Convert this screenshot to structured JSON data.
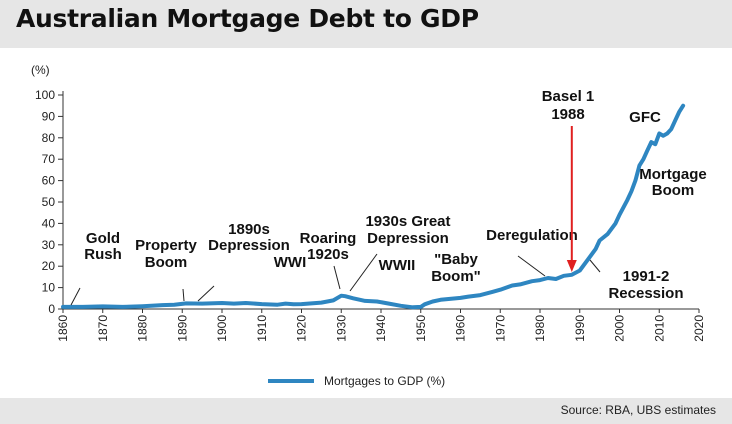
{
  "title": "Australian Mortgage Debt to GDP",
  "source": "Source:  RBA, UBS estimates",
  "chart_data": {
    "type": "line",
    "title": "Australian Mortgage Debt to GDP",
    "ylabel": "(%)",
    "xlabel": "",
    "xlim": [
      1860,
      2020
    ],
    "ylim": [
      0,
      100
    ],
    "xticks": [
      1860,
      1870,
      1880,
      1890,
      1900,
      1910,
      1920,
      1930,
      1940,
      1950,
      1960,
      1970,
      1980,
      1990,
      2000,
      2010,
      2020
    ],
    "yticks": [
      0,
      10,
      20,
      30,
      40,
      50,
      60,
      70,
      80,
      90,
      100
    ],
    "grid": false,
    "legend_position": "bottom",
    "series": [
      {
        "name": "Mortgages to GDP (%)",
        "color": "#2e86c1",
        "x": [
          1860,
          1865,
          1870,
          1875,
          1880,
          1885,
          1888,
          1891,
          1895,
          1900,
          1903,
          1906,
          1910,
          1914,
          1916,
          1918,
          1920,
          1925,
          1928,
          1930,
          1931,
          1933,
          1936,
          1939,
          1942,
          1945,
          1948,
          1950,
          1951,
          1953,
          1955,
          1960,
          1962,
          1965,
          1968,
          1970,
          1973,
          1975,
          1978,
          1980,
          1982,
          1984,
          1986,
          1988,
          1990,
          1992,
          1994,
          1995,
          1997,
          1999,
          2000,
          2002,
          2003,
          2004,
          2005,
          2006,
          2007,
          2008,
          2009,
          2010,
          2011,
          2012,
          2013,
          2014,
          2015,
          2016
        ],
        "values": [
          1,
          1,
          1.2,
          1,
          1.3,
          1.8,
          2,
          2.6,
          2.5,
          2.8,
          2.5,
          2.8,
          2.3,
          2,
          2.5,
          2.2,
          2.3,
          3,
          4,
          6.2,
          6,
          5,
          3.8,
          3.5,
          2.5,
          1.5,
          0.8,
          1,
          2.2,
          3.5,
          4.3,
          5.2,
          5.8,
          6.5,
          8,
          9,
          11,
          11.5,
          13,
          13.5,
          14.5,
          14,
          15.5,
          16,
          18,
          23,
          28,
          32,
          35,
          40,
          44,
          51,
          55,
          60,
          67,
          70,
          74,
          78,
          77,
          82,
          81,
          82,
          84,
          88,
          92,
          95
        ]
      }
    ],
    "annotations": [
      {
        "lines": [
          "Gold",
          "Rush"
        ]
      },
      {
        "lines": [
          "Property",
          "Boom"
        ]
      },
      {
        "lines": [
          "1890s",
          "Depression"
        ]
      },
      {
        "lines": [
          "WWI"
        ]
      },
      {
        "lines": [
          "Roaring",
          "1920s"
        ]
      },
      {
        "lines": [
          "1930s Great",
          "Depression"
        ]
      },
      {
        "lines": [
          "WWII"
        ]
      },
      {
        "lines": [
          "\"Baby",
          "Boom\""
        ]
      },
      {
        "lines": [
          "Deregulation"
        ]
      },
      {
        "lines": [
          "Basel 1",
          "1988"
        ]
      },
      {
        "lines": [
          "GFC"
        ]
      },
      {
        "lines": [
          "Mortgage",
          "Boom"
        ]
      },
      {
        "lines": [
          "1991-2",
          "Recession"
        ]
      }
    ],
    "arrow_color": "#e02020"
  }
}
